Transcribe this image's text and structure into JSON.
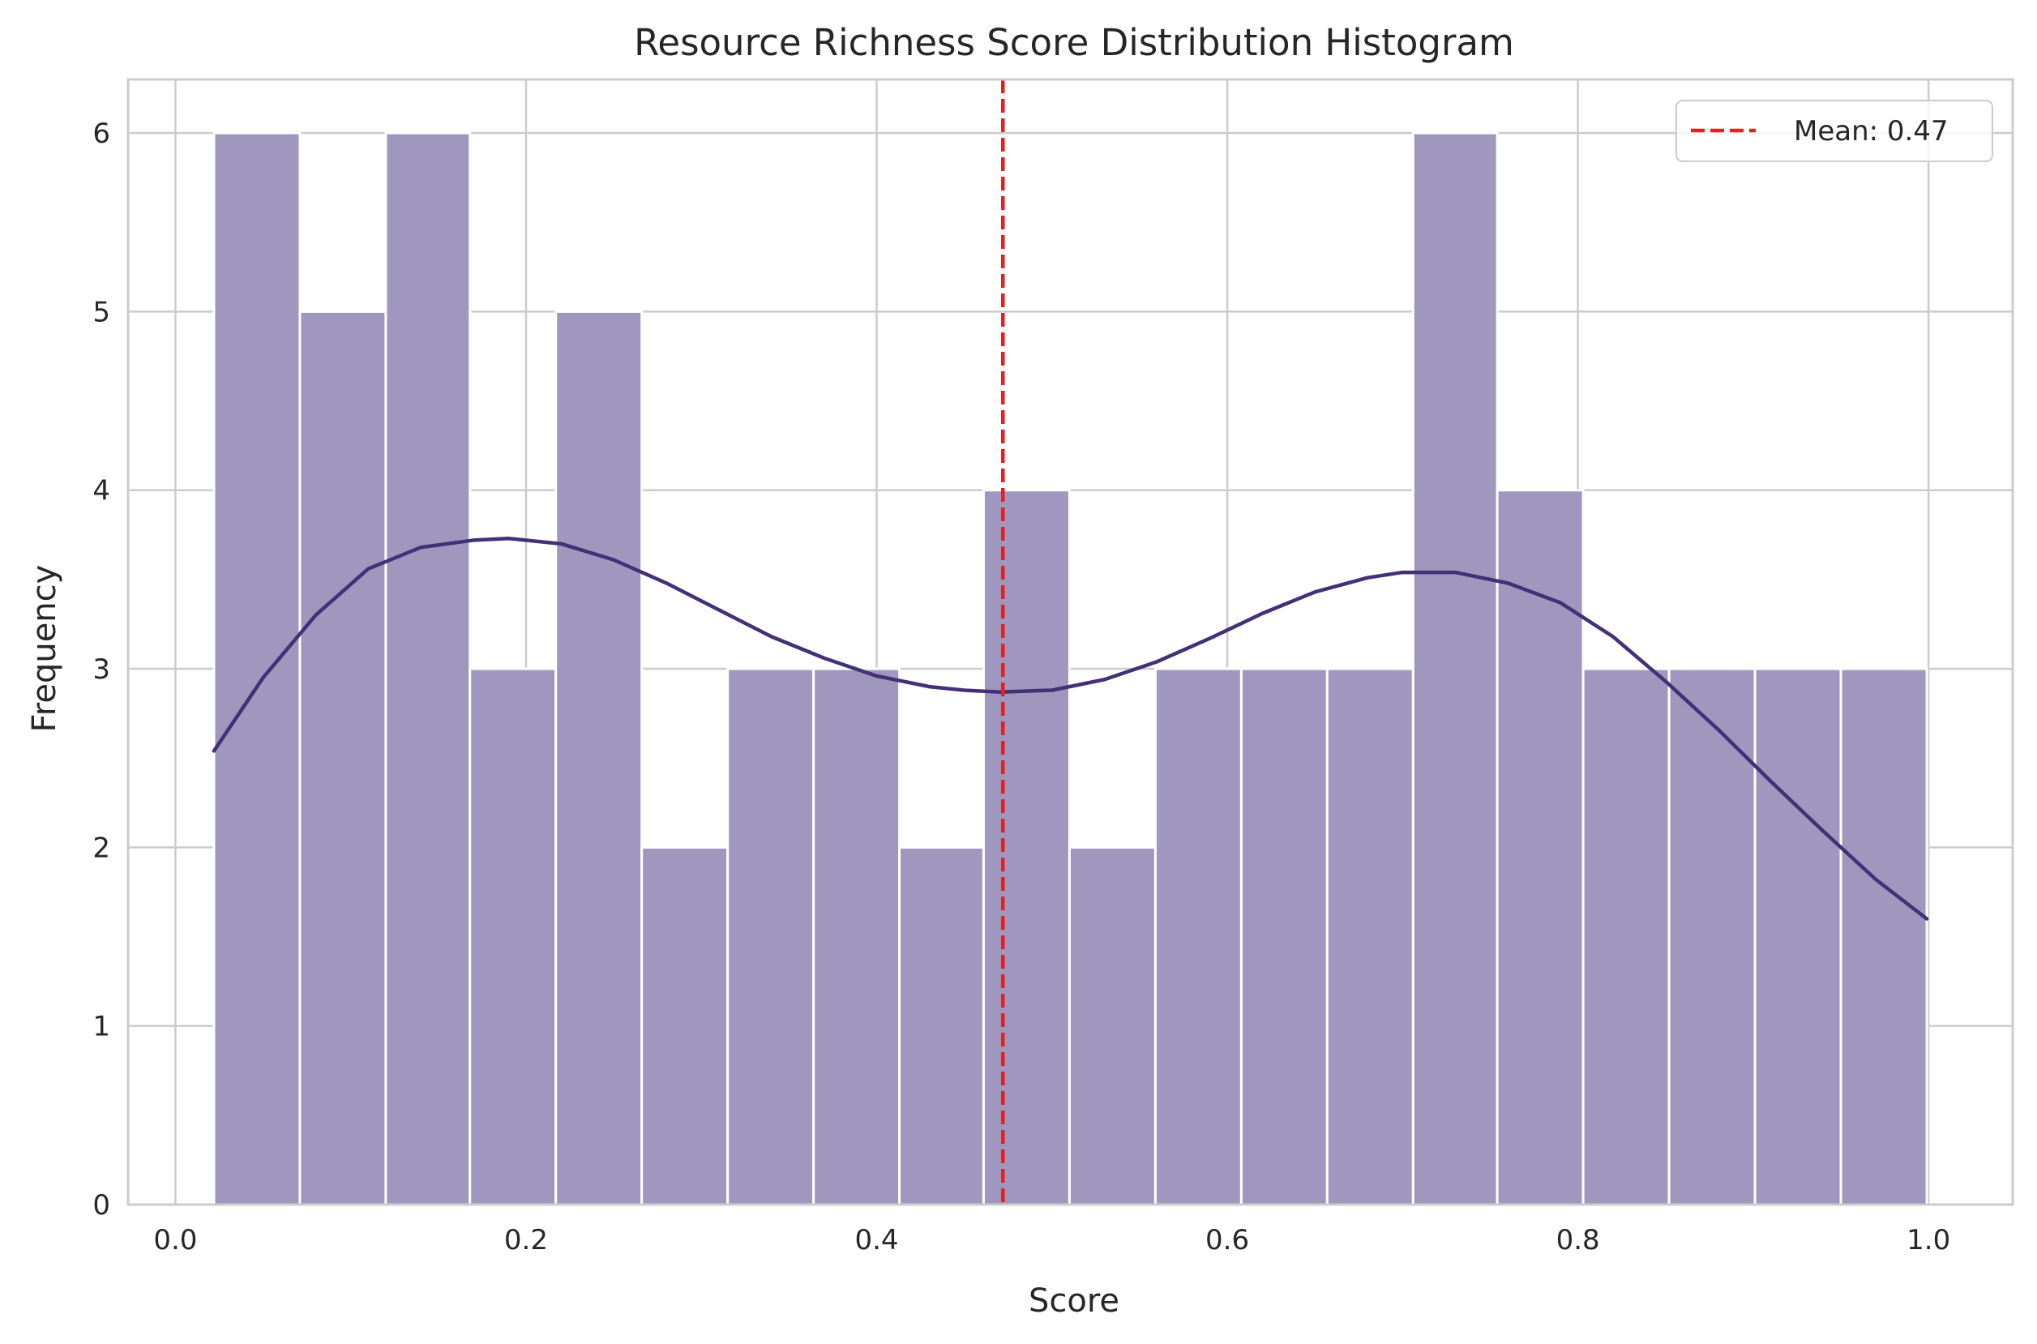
{
  "chart_data": {
    "type": "bar",
    "title": "Resource Richness Score Distribution Histogram",
    "xlabel": "Score",
    "ylabel": "Frequency",
    "xlim": [
      -0.027,
      1.048
    ],
    "ylim": [
      0,
      6.3
    ],
    "xticks": [
      "0.0",
      "0.2",
      "0.4",
      "0.6",
      "0.8",
      "1.0"
    ],
    "yticks": [
      "0",
      "1",
      "2",
      "3",
      "4",
      "5",
      "6"
    ],
    "grid": true,
    "legend_position": "top-right",
    "bins": [
      {
        "x0": 0.022,
        "x1": 0.071,
        "count": 6
      },
      {
        "x0": 0.071,
        "x1": 0.12,
        "count": 5
      },
      {
        "x0": 0.12,
        "x1": 0.168,
        "count": 6
      },
      {
        "x0": 0.168,
        "x1": 0.217,
        "count": 3
      },
      {
        "x0": 0.217,
        "x1": 0.266,
        "count": 5
      },
      {
        "x0": 0.266,
        "x1": 0.315,
        "count": 2
      },
      {
        "x0": 0.315,
        "x1": 0.364,
        "count": 3
      },
      {
        "x0": 0.364,
        "x1": 0.413,
        "count": 3
      },
      {
        "x0": 0.413,
        "x1": 0.461,
        "count": 2
      },
      {
        "x0": 0.461,
        "x1": 0.51,
        "count": 4
      },
      {
        "x0": 0.51,
        "x1": 0.559,
        "count": 2
      },
      {
        "x0": 0.559,
        "x1": 0.608,
        "count": 3
      },
      {
        "x0": 0.608,
        "x1": 0.657,
        "count": 3
      },
      {
        "x0": 0.657,
        "x1": 0.706,
        "count": 3
      },
      {
        "x0": 0.706,
        "x1": 0.754,
        "count": 6
      },
      {
        "x0": 0.754,
        "x1": 0.803,
        "count": 4
      },
      {
        "x0": 0.803,
        "x1": 0.852,
        "count": 3
      },
      {
        "x0": 0.852,
        "x1": 0.901,
        "count": 3
      },
      {
        "x0": 0.901,
        "x1": 0.95,
        "count": 3
      },
      {
        "x0": 0.95,
        "x1": 0.999,
        "count": 3
      }
    ],
    "kde_curve": {
      "x": [
        0.022,
        0.05,
        0.08,
        0.11,
        0.14,
        0.17,
        0.19,
        0.22,
        0.25,
        0.28,
        0.31,
        0.34,
        0.37,
        0.4,
        0.43,
        0.45,
        0.47,
        0.5,
        0.53,
        0.56,
        0.59,
        0.62,
        0.65,
        0.68,
        0.7,
        0.73,
        0.76,
        0.79,
        0.82,
        0.85,
        0.88,
        0.91,
        0.94,
        0.97,
        0.999
      ],
      "y": [
        2.54,
        2.95,
        3.3,
        3.56,
        3.68,
        3.72,
        3.73,
        3.7,
        3.61,
        3.48,
        3.33,
        3.18,
        3.06,
        2.96,
        2.9,
        2.88,
        2.87,
        2.88,
        2.94,
        3.04,
        3.17,
        3.31,
        3.43,
        3.51,
        3.54,
        3.54,
        3.48,
        3.37,
        3.18,
        2.93,
        2.66,
        2.37,
        2.09,
        1.82,
        1.6
      ]
    },
    "mean": 0.472,
    "legend": [
      {
        "label": "Mean: 0.47"
      }
    ],
    "colors": {
      "bar": "#9f97bd",
      "bar_edge": "#ffffff",
      "kde": "#433077",
      "mean_line": "#ee1c1c",
      "grid": "#cccccc",
      "spine": "#cccccc"
    }
  }
}
